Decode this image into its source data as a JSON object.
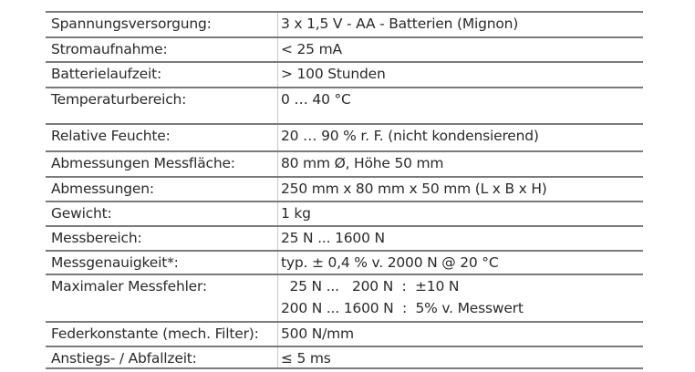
{
  "rows": [
    {
      "label": "Spannungsversorgung:",
      "value": "3 x 1,5 V - AA - Batterien (Mignon)"
    },
    {
      "label": "Stromaufnahme:",
      "value": "< 25 mA"
    },
    {
      "label": "Batterielaufzeit:",
      "value": "> 100 Stunden"
    },
    {
      "label": "Temperaturbereich:",
      "value": "0 … 40 °C"
    },
    {
      "label": "Relative Feuchte:",
      "value": "20 … 90 % r. F. (nicht kondensierend)"
    },
    {
      "label": "Abmessungen Messfläche:",
      "value": "80 mm Ø, Höhe 50 mm"
    },
    {
      "label": "Abmessungen:",
      "value": "250 mm x 80 mm x 50 mm (L x B x H)"
    },
    {
      "label": "Gewicht:",
      "value": "1 kg"
    },
    {
      "label": "Messbereich:",
      "value": "25 N ... 1600 N"
    },
    {
      "label": "Messgenauigkeit*:",
      "value": "typ. ± 0,4 % v. 2000 N @ 20 °C"
    },
    {
      "label": "Maximaler Messfehler:",
      "value": "  25 N ...   200 N  :  ±10 N",
      "value2": "200 N ... 1600 N  :  5% v. Messwert"
    },
    {
      "label": "Federkonstante (mech. Filter):",
      "value": "500 N/mm"
    },
    {
      "label": "Anstiegs- / Abfallzeit:",
      "value": "≤ 5 ms"
    }
  ]
}
